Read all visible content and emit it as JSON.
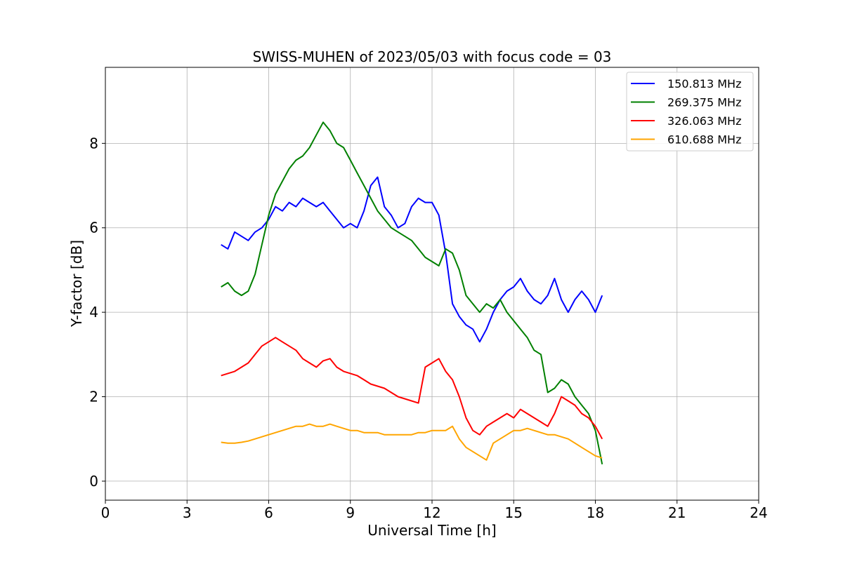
{
  "chart_data": {
    "type": "line",
    "title": "SWISS-MUHEN of 2023/05/03 with focus code = 03",
    "xlabel": "Universal Time [h]",
    "ylabel": "Y-factor [dB]",
    "xlim": [
      0,
      24
    ],
    "ylim": [
      -0.45,
      9.8
    ],
    "x_ticks": [
      0,
      3,
      6,
      9,
      12,
      15,
      18,
      21,
      24
    ],
    "y_ticks": [
      0,
      2,
      4,
      6,
      8
    ],
    "grid": true,
    "legend_position": "top-right",
    "series": [
      {
        "name": "150.813 MHz",
        "color": "#0000ff",
        "x": [
          4.25,
          4.5,
          4.75,
          5.0,
          5.25,
          5.5,
          5.75,
          6.0,
          6.25,
          6.5,
          6.75,
          7.0,
          7.25,
          7.5,
          7.75,
          8.0,
          8.25,
          8.5,
          8.75,
          9.0,
          9.25,
          9.5,
          9.75,
          10.0,
          10.25,
          10.5,
          10.75,
          11.0,
          11.25,
          11.5,
          11.75,
          12.0,
          12.25,
          12.5,
          12.75,
          13.0,
          13.25,
          13.5,
          13.75,
          14.0,
          14.25,
          14.5,
          14.75,
          15.0,
          15.25,
          15.5,
          15.75,
          16.0,
          16.25,
          16.5,
          16.75,
          17.0,
          17.25,
          17.5,
          17.75,
          18.0,
          18.25
        ],
        "y": [
          5.6,
          5.5,
          5.9,
          5.8,
          5.7,
          5.9,
          6.0,
          6.2,
          6.5,
          6.4,
          6.6,
          6.5,
          6.7,
          6.6,
          6.5,
          6.6,
          6.4,
          6.2,
          6.0,
          6.1,
          6.0,
          6.4,
          7.0,
          7.2,
          6.5,
          6.3,
          6.0,
          6.1,
          6.5,
          6.7,
          6.6,
          6.6,
          6.3,
          5.4,
          4.2,
          3.9,
          3.7,
          3.6,
          3.3,
          3.6,
          4.0,
          4.3,
          4.5,
          4.6,
          4.8,
          4.5,
          4.3,
          4.2,
          4.4,
          4.8,
          4.3,
          4.0,
          4.3,
          4.5,
          4.3,
          4.0,
          4.4
        ]
      },
      {
        "name": "269.375 MHz",
        "color": "#008000",
        "x": [
          4.25,
          4.5,
          4.75,
          5.0,
          5.25,
          5.5,
          5.75,
          6.0,
          6.25,
          6.5,
          6.75,
          7.0,
          7.25,
          7.5,
          7.75,
          8.0,
          8.25,
          8.5,
          8.75,
          9.0,
          9.25,
          9.5,
          9.75,
          10.0,
          10.25,
          10.5,
          10.75,
          11.0,
          11.25,
          11.5,
          11.75,
          12.0,
          12.25,
          12.5,
          12.75,
          13.0,
          13.25,
          13.5,
          13.75,
          14.0,
          14.25,
          14.5,
          14.75,
          15.0,
          15.25,
          15.5,
          15.75,
          16.0,
          16.25,
          16.5,
          16.75,
          17.0,
          17.25,
          17.5,
          17.75,
          18.0,
          18.25
        ],
        "y": [
          4.6,
          4.7,
          4.5,
          4.4,
          4.5,
          4.9,
          5.6,
          6.3,
          6.8,
          7.1,
          7.4,
          7.6,
          7.7,
          7.9,
          8.2,
          8.5,
          8.3,
          8.0,
          7.9,
          7.6,
          7.3,
          7.0,
          6.7,
          6.4,
          6.2,
          6.0,
          5.9,
          5.8,
          5.7,
          5.5,
          5.3,
          5.2,
          5.1,
          5.5,
          5.4,
          5.0,
          4.4,
          4.2,
          4.0,
          4.2,
          4.1,
          4.3,
          4.0,
          3.8,
          3.6,
          3.4,
          3.1,
          3.0,
          2.1,
          2.2,
          2.4,
          2.3,
          2.0,
          1.8,
          1.6,
          1.2,
          0.4
        ]
      },
      {
        "name": "326.063 MHz",
        "color": "#ff0000",
        "x": [
          4.25,
          4.5,
          4.75,
          5.0,
          5.25,
          5.5,
          5.75,
          6.0,
          6.25,
          6.5,
          6.75,
          7.0,
          7.25,
          7.5,
          7.75,
          8.0,
          8.25,
          8.5,
          8.75,
          9.0,
          9.25,
          9.5,
          9.75,
          10.0,
          10.25,
          10.5,
          10.75,
          11.0,
          11.25,
          11.5,
          11.75,
          12.0,
          12.25,
          12.5,
          12.75,
          13.0,
          13.25,
          13.5,
          13.75,
          14.0,
          14.25,
          14.5,
          14.75,
          15.0,
          15.25,
          15.5,
          15.75,
          16.0,
          16.25,
          16.5,
          16.75,
          17.0,
          17.25,
          17.5,
          17.75,
          18.0,
          18.25
        ],
        "y": [
          2.5,
          2.55,
          2.6,
          2.7,
          2.8,
          3.0,
          3.2,
          3.3,
          3.4,
          3.3,
          3.2,
          3.1,
          2.9,
          2.8,
          2.7,
          2.85,
          2.9,
          2.7,
          2.6,
          2.55,
          2.5,
          2.4,
          2.3,
          2.25,
          2.2,
          2.1,
          2.0,
          1.95,
          1.9,
          1.85,
          2.7,
          2.8,
          2.9,
          2.6,
          2.4,
          2.0,
          1.5,
          1.2,
          1.1,
          1.3,
          1.4,
          1.5,
          1.6,
          1.5,
          1.7,
          1.6,
          1.5,
          1.4,
          1.3,
          1.6,
          2.0,
          1.9,
          1.8,
          1.6,
          1.5,
          1.3,
          1.0
        ]
      },
      {
        "name": "610.688 MHz",
        "color": "#ffa500",
        "x": [
          4.25,
          4.5,
          4.75,
          5.0,
          5.25,
          5.5,
          5.75,
          6.0,
          6.25,
          6.5,
          6.75,
          7.0,
          7.25,
          7.5,
          7.75,
          8.0,
          8.25,
          8.5,
          8.75,
          9.0,
          9.25,
          9.5,
          9.75,
          10.0,
          10.25,
          10.5,
          10.75,
          11.0,
          11.25,
          11.5,
          11.75,
          12.0,
          12.25,
          12.5,
          12.75,
          13.0,
          13.25,
          13.5,
          13.75,
          14.0,
          14.25,
          14.5,
          14.75,
          15.0,
          15.25,
          15.5,
          15.75,
          16.0,
          16.25,
          16.5,
          16.75,
          17.0,
          17.25,
          17.5,
          17.75,
          18.0,
          18.25
        ],
        "y": [
          0.92,
          0.9,
          0.9,
          0.92,
          0.95,
          1.0,
          1.05,
          1.1,
          1.15,
          1.2,
          1.25,
          1.3,
          1.3,
          1.35,
          1.3,
          1.3,
          1.35,
          1.3,
          1.25,
          1.2,
          1.2,
          1.15,
          1.15,
          1.15,
          1.1,
          1.1,
          1.1,
          1.1,
          1.1,
          1.15,
          1.15,
          1.2,
          1.2,
          1.2,
          1.3,
          1.0,
          0.8,
          0.7,
          0.6,
          0.5,
          0.9,
          1.0,
          1.1,
          1.2,
          1.2,
          1.25,
          1.2,
          1.15,
          1.1,
          1.1,
          1.05,
          1.0,
          0.9,
          0.8,
          0.7,
          0.6,
          0.55
        ]
      }
    ]
  }
}
